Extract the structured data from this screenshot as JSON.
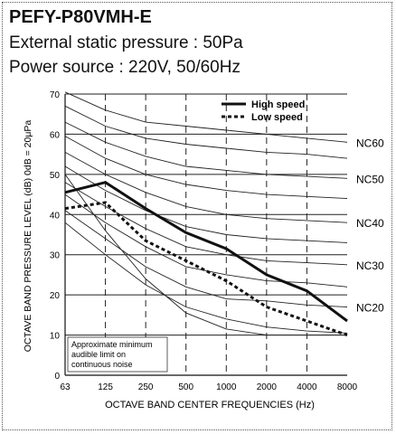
{
  "header": {
    "model": "PEFY-P80VMH-E",
    "static_pressure": "External static pressure : 50Pa",
    "power_source": "Power source : 220V, 50/60Hz"
  },
  "chart_data": {
    "type": "line",
    "x_categories": [
      "63",
      "125",
      "250",
      "500",
      "1000",
      "2000",
      "4000",
      "8000"
    ],
    "xlabel": "OCTAVE  BAND  CENTER  FREQUENCIES (Hz)",
    "ylabel": "OCTAVE  BAND  PRESSURE  LEVEL (dB) 0dB = 20μPa",
    "ylim": [
      0,
      70
    ],
    "yticks": [
      0,
      10,
      20,
      30,
      40,
      50,
      60,
      70
    ],
    "grid": "horizontal solid, vertical dashed",
    "legend_position": "top-right",
    "series": [
      {
        "name": "High speed",
        "style": "solid",
        "values": [
          45.5,
          48,
          41.5,
          35.5,
          31.5,
          25,
          21,
          13.5
        ]
      },
      {
        "name": "Low speed",
        "style": "dotted",
        "values": [
          41.5,
          43,
          33.5,
          28.5,
          23.5,
          17,
          13.5,
          10
        ]
      }
    ],
    "nc_curves": [
      {
        "label": "NC60",
        "values": [
          70.5,
          66,
          63,
          62,
          61,
          60,
          59,
          58
        ]
      },
      {
        "label": "",
        "values": [
          67,
          62,
          59,
          57.5,
          56.5,
          55.5,
          55,
          54
        ]
      },
      {
        "label": "NC50",
        "values": [
          63,
          58,
          54.5,
          52,
          51,
          50,
          49.5,
          49
        ]
      },
      {
        "label": "",
        "values": [
          59.5,
          54,
          50,
          47.5,
          46,
          45,
          44.5,
          44
        ]
      },
      {
        "label": "NC40",
        "values": [
          55.5,
          50,
          45.5,
          42,
          40,
          39,
          38.5,
          38
        ]
      },
      {
        "label": "",
        "values": [
          52,
          46,
          41,
          37,
          35,
          34,
          33.5,
          33
        ]
      },
      {
        "label": "NC30",
        "values": [
          48,
          42,
          36.5,
          32,
          30,
          28.5,
          28,
          27.5
        ]
      },
      {
        "label": "",
        "values": [
          45,
          38,
          32,
          27,
          25,
          23.5,
          23,
          22
        ]
      },
      {
        "label": "NC20",
        "values": [
          41,
          34,
          27,
          22,
          19,
          18.5,
          17.5,
          17
        ]
      },
      {
        "label": "",
        "values": [
          38,
          30,
          22.5,
          17,
          14,
          12,
          11,
          10.5
        ]
      },
      {
        "label": "",
        "values": [
          50,
          36,
          24,
          15.5,
          11.5,
          10,
          10,
          10
        ]
      }
    ],
    "annotation": [
      "Approximate minimum",
      "audible limit on",
      "continuous noise"
    ]
  }
}
